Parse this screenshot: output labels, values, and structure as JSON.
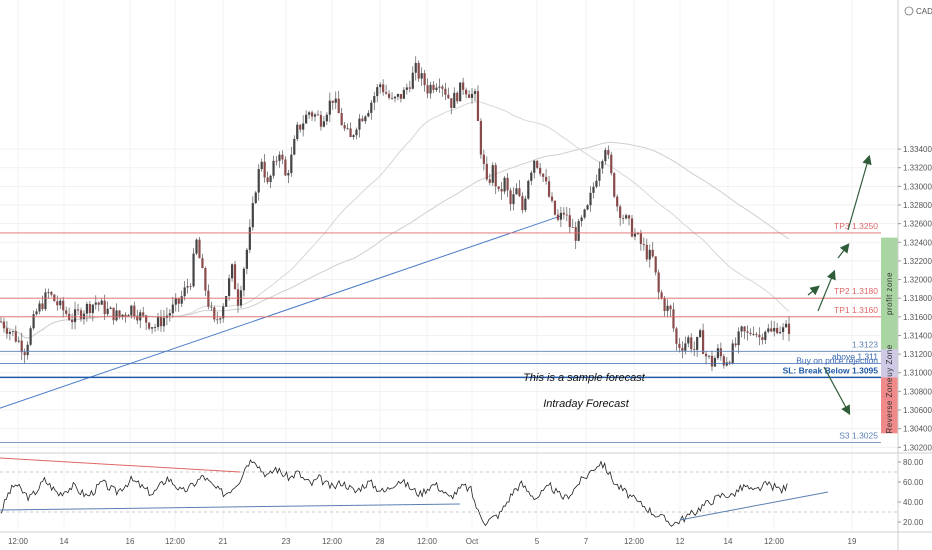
{
  "currency": "CAD",
  "chart_data": {
    "type": "candlestick",
    "instrument_currency": "CAD",
    "y_axis": {
      "ylim": [
        1.3016,
        1.35
      ],
      "ticks": [
        "1.30200",
        "1.30400",
        "1.30600",
        "1.30800",
        "1.31000",
        "1.31200",
        "1.31400",
        "1.31600",
        "1.31800",
        "1.32000",
        "1.32200",
        "1.32400",
        "1.32600",
        "1.32800",
        "1.33000",
        "1.33200",
        "1.33400"
      ]
    },
    "x_axis": {
      "ticks": [
        "12:00",
        "14",
        "16",
        "12:00",
        "21",
        "23",
        "12:00",
        "28",
        "12:00",
        "Oct",
        "5",
        "7",
        "12:00",
        "12",
        "14",
        "12:00",
        "19"
      ]
    },
    "price_path": [
      [
        0,
        1.3155
      ],
      [
        4,
        1.3142
      ],
      [
        8,
        1.3125
      ],
      [
        12,
        1.3165
      ],
      [
        16,
        1.3185
      ],
      [
        20,
        1.317
      ],
      [
        24,
        1.3158
      ],
      [
        28,
        1.3168
      ],
      [
        32,
        1.3176
      ],
      [
        36,
        1.3166
      ],
      [
        40,
        1.316
      ],
      [
        44,
        1.317
      ],
      [
        48,
        1.3158
      ],
      [
        52,
        1.315
      ],
      [
        56,
        1.3162
      ],
      [
        60,
        1.3175
      ],
      [
        64,
        1.32
      ],
      [
        66,
        1.324
      ],
      [
        68,
        1.3205
      ],
      [
        70,
        1.3175
      ],
      [
        72,
        1.3152
      ],
      [
        74,
        1.3165
      ],
      [
        76,
        1.3185
      ],
      [
        78,
        1.321
      ],
      [
        80,
        1.3178
      ],
      [
        84,
        1.325
      ],
      [
        86,
        1.33
      ],
      [
        88,
        1.333
      ],
      [
        90,
        1.33
      ],
      [
        92,
        1.332
      ],
      [
        94,
        1.334
      ],
      [
        96,
        1.331
      ],
      [
        98,
        1.333
      ],
      [
        100,
        1.336
      ],
      [
        104,
        1.338
      ],
      [
        108,
        1.3372
      ],
      [
        112,
        1.3395
      ],
      [
        116,
        1.336
      ],
      [
        118,
        1.335
      ],
      [
        120,
        1.3368
      ],
      [
        124,
        1.3385
      ],
      [
        128,
        1.341
      ],
      [
        132,
        1.339
      ],
      [
        136,
        1.34
      ],
      [
        140,
        1.3425
      ],
      [
        144,
        1.3405
      ],
      [
        148,
        1.3415
      ],
      [
        152,
        1.339
      ],
      [
        156,
        1.3408
      ],
      [
        160,
        1.3395
      ],
      [
        162,
        1.334
      ],
      [
        164,
        1.33
      ],
      [
        166,
        1.3318
      ],
      [
        168,
        1.329
      ],
      [
        170,
        1.3305
      ],
      [
        172,
        1.328
      ],
      [
        174,
        1.3295
      ],
      [
        176,
        1.3275
      ],
      [
        178,
        1.331
      ],
      [
        180,
        1.333
      ],
      [
        182,
        1.332
      ],
      [
        184,
        1.33
      ],
      [
        186,
        1.3278
      ],
      [
        188,
        1.3262
      ],
      [
        190,
        1.3272
      ],
      [
        192,
        1.3258
      ],
      [
        194,
        1.3248
      ],
      [
        196,
        1.3262
      ],
      [
        198,
        1.3275
      ],
      [
        200,
        1.33
      ],
      [
        202,
        1.3325
      ],
      [
        204,
        1.3345
      ],
      [
        206,
        1.331
      ],
      [
        208,
        1.328
      ],
      [
        210,
        1.3268
      ],
      [
        212,
        1.3258
      ],
      [
        214,
        1.3248
      ],
      [
        216,
        1.3238
      ],
      [
        218,
        1.3228
      ],
      [
        220,
        1.3222
      ],
      [
        222,
        1.3185
      ],
      [
        224,
        1.3172
      ],
      [
        226,
        1.3165
      ],
      [
        228,
        1.313
      ],
      [
        230,
        1.313
      ],
      [
        232,
        1.3136
      ],
      [
        234,
        1.3125
      ],
      [
        236,
        1.3138
      ],
      [
        238,
        1.3118
      ],
      [
        240,
        1.311
      ],
      [
        242,
        1.3122
      ],
      [
        244,
        1.3112
      ],
      [
        246,
        1.3118
      ],
      [
        248,
        1.313
      ],
      [
        250,
        1.3143
      ],
      [
        252,
        1.314
      ],
      [
        254,
        1.3148
      ],
      [
        256,
        1.3138
      ],
      [
        258,
        1.3148
      ],
      [
        260,
        1.3142
      ],
      [
        262,
        1.315
      ],
      [
        264,
        1.3145
      ],
      [
        266,
        1.3148
      ]
    ],
    "levels": [
      {
        "label": "TP3 1.3250",
        "value": 1.325,
        "color": "#e06666"
      },
      {
        "label": "TP2 1.3180",
        "value": 1.318,
        "color": "#e06666"
      },
      {
        "label": "TP1 1.3160",
        "value": 1.316,
        "color": "#e06666"
      },
      {
        "label": "1.3123",
        "value": 1.3123,
        "color": "#5b7fb4"
      },
      {
        "label": "above 1.311",
        "value": 1.311,
        "color": "#3c6bb3"
      },
      {
        "label": "SL: Break Below 1.3095",
        "value": 1.3095,
        "color": "#1f5aa8"
      },
      {
        "label": "S3 1.3025",
        "value": 1.3025,
        "color": "#5b7fb4"
      }
    ],
    "buy_label": "Buy on price rejection",
    "zones": [
      {
        "label": "profit zone",
        "from": 1.3125,
        "to": 1.3245,
        "color": "#a8d5a2"
      },
      {
        "label": "Buy Zone",
        "from": 1.3095,
        "to": 1.3125,
        "color": "#cfc9e6"
      },
      {
        "label": "Reverse Zone",
        "from": 1.3035,
        "to": 1.3095,
        "color": "#f08a8a"
      }
    ],
    "annotations": [
      "This is a sample forecast",
      "Intraday Forecast"
    ],
    "oscillator": {
      "ticks": [
        "80.00",
        "60.00",
        "40.00",
        "20.00"
      ],
      "ylim": [
        12,
        88
      ],
      "guides": [
        70,
        30
      ],
      "series": [
        30,
        48,
        58,
        50,
        44,
        52,
        62,
        55,
        48,
        52,
        56,
        50,
        46,
        52,
        60,
        54,
        50,
        56,
        62,
        58,
        52,
        48,
        56,
        64,
        58,
        50,
        54,
        60,
        66,
        58,
        52,
        48,
        54,
        62,
        78,
        84,
        72,
        66,
        74,
        68,
        64,
        70,
        62,
        58,
        64,
        58,
        54,
        60,
        56,
        50,
        56,
        60,
        54,
        50,
        56,
        62,
        58,
        52,
        48,
        54,
        58,
        52,
        44,
        50,
        56,
        52,
        30,
        20,
        24,
        28,
        40,
        52,
        58,
        50,
        44,
        50,
        56,
        48,
        44,
        50,
        60,
        66,
        74,
        80,
        70,
        58,
        52,
        46,
        40,
        36,
        30,
        26,
        22,
        18,
        22,
        26,
        30,
        36,
        40,
        44,
        48,
        46,
        52,
        56,
        50,
        54,
        58,
        55,
        52,
        57
      ]
    },
    "oscillator_lines": [
      {
        "name": "resistance",
        "from": [
          0,
          84
        ],
        "to": [
          240,
          70
        ],
        "color": "#e06666"
      },
      {
        "name": "support-1",
        "from": [
          0,
          32
        ],
        "to": [
          460,
          38
        ],
        "color": "#5b7fb4"
      },
      {
        "name": "support-2",
        "from": [
          680,
          22
        ],
        "to": [
          828,
          50
        ],
        "color": "#5b7fb4"
      }
    ]
  }
}
